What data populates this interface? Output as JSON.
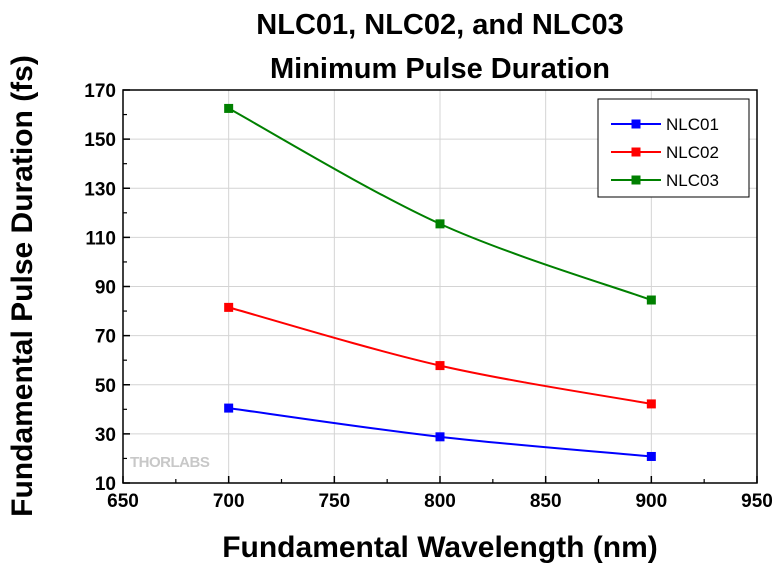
{
  "chart_data": {
    "type": "line",
    "title": [
      "NLC01, NLC02, and NLC03",
      "Minimum Pulse Duration"
    ],
    "xlabel": "Fundamental Wavelength (nm)",
    "ylabel": "Fundamental Pulse Duration (fs)",
    "xlim": [
      650,
      950
    ],
    "ylim": [
      10,
      170
    ],
    "xticks": [
      650,
      700,
      750,
      800,
      850,
      900,
      950
    ],
    "yticks": [
      10,
      30,
      50,
      70,
      90,
      110,
      130,
      150,
      170
    ],
    "grid": true,
    "legend_position": "top-right",
    "x": [
      700,
      800,
      900
    ],
    "series": [
      {
        "name": "NLC01",
        "color": "#0000ff",
        "values": [
          40.5,
          28.8,
          20.8
        ]
      },
      {
        "name": "NLC02",
        "color": "#ff0000",
        "values": [
          81.5,
          57.8,
          42.2
        ]
      },
      {
        "name": "NLC03",
        "color": "#008000",
        "values": [
          162.5,
          115.5,
          84.5
        ]
      }
    ],
    "watermark": "THORLABS"
  }
}
